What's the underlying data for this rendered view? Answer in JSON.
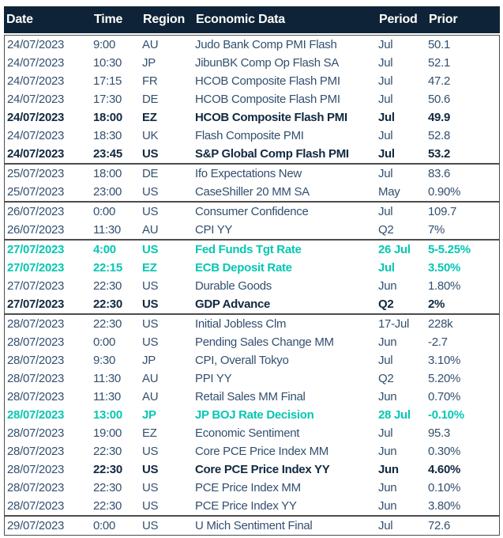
{
  "header": {
    "columns": [
      "Date",
      "Time",
      "Region",
      "Economic Data",
      "Period",
      "Prior"
    ]
  },
  "colors": {
    "header_bg": "#0E2337",
    "header_text": "#FFFFFF",
    "text_normal": "#33506F",
    "text_bold": "#112940",
    "text_highlight_teal": "#06C7B2",
    "border": "#4D4D4D",
    "background": "#FFFFFF"
  },
  "groups": [
    {
      "date": "24/07/2023",
      "rows": [
        {
          "time": "9:00",
          "region": "AU",
          "event": "Judo Bank Comp PMI Flash",
          "period": "Jul",
          "prior": "50.1",
          "style": "normal"
        },
        {
          "time": "10:30",
          "region": "JP",
          "event": "JibunBK Comp Op Flash SA",
          "period": "Jul",
          "prior": "52.1",
          "style": "normal"
        },
        {
          "time": "17:15",
          "region": "FR",
          "event": "HCOB Composite Flash PMI",
          "period": "Jul",
          "prior": "47.2",
          "style": "normal"
        },
        {
          "time": "17:30",
          "region": "DE",
          "event": "HCOB Composite Flash PMI",
          "period": "Jul",
          "prior": "50.6",
          "style": "normal"
        },
        {
          "time": "18:00",
          "region": "EZ",
          "event": "HCOB Composite Flash PMI",
          "period": "Jul",
          "prior": "49.9",
          "style": "bold"
        },
        {
          "time": "18:30",
          "region": "UK",
          "event": "Flash Composite PMI",
          "period": "Jul",
          "prior": "52.8",
          "style": "normal"
        },
        {
          "time": "23:45",
          "region": "US",
          "event": "S&P Global Comp Flash PMI",
          "period": "Jul",
          "prior": "53.2",
          "style": "bold"
        }
      ]
    },
    {
      "date": "25/07/2023",
      "rows": [
        {
          "time": "18:00",
          "region": "DE",
          "event": "Ifo Expectations New",
          "period": "Jul",
          "prior": "83.6",
          "style": "normal"
        },
        {
          "time": "23:00",
          "region": "US",
          "event": "CaseShiller 20 MM SA",
          "period": "May",
          "prior": "0.90%",
          "style": "normal"
        }
      ]
    },
    {
      "date": "26/07/2023",
      "rows": [
        {
          "time": "0:00",
          "region": "US",
          "event": "Consumer Confidence",
          "period": "Jul",
          "prior": "109.7",
          "style": "normal"
        },
        {
          "time": "11:30",
          "region": "AU",
          "event": "CPI YY",
          "period": "Q2",
          "prior": "7%",
          "style": "normal"
        }
      ]
    },
    {
      "date": "27/07/2023",
      "rows": [
        {
          "time": "4:00",
          "region": "US",
          "event": "Fed Funds Tgt Rate",
          "period": "26 Jul",
          "prior": "5-5.25%",
          "style": "teal"
        },
        {
          "time": "22:15",
          "region": "EZ",
          "event": "ECB Deposit Rate",
          "period": "Jul",
          "prior": "3.50%",
          "style": "teal"
        },
        {
          "time": "22:30",
          "region": "US",
          "event": "Durable Goods",
          "period": "Jun",
          "prior": "1.80%",
          "style": "normal"
        },
        {
          "time": "22:30",
          "region": "US",
          "event": "GDP Advance",
          "period": "Q2",
          "prior": "2%",
          "style": "bold"
        }
      ]
    },
    {
      "date": "28/07/2023",
      "rows": [
        {
          "time": "22:30",
          "region": "US",
          "event": "Initial Jobless Clm",
          "period": "17-Jul",
          "prior": "228k",
          "style": "normal"
        },
        {
          "time": "0:00",
          "region": "US",
          "event": "Pending Sales Change MM",
          "period": "Jun",
          "prior": "-2.7",
          "style": "normal"
        },
        {
          "time": "9:30",
          "region": "JP",
          "event": "CPI, Overall Tokyo",
          "period": "Jul",
          "prior": "3.10%",
          "style": "normal"
        },
        {
          "time": "11:30",
          "region": "AU",
          "event": "PPI YY",
          "period": "Q2",
          "prior": "5.20%",
          "style": "normal"
        },
        {
          "time": "11:30",
          "region": "AU",
          "event": "Retail Sales MM Final",
          "period": "Jun",
          "prior": "0.70%",
          "style": "normal"
        },
        {
          "time": "13:00",
          "region": "JP",
          "event": "JP BOJ Rate Decision",
          "period": "28 Jul",
          "prior": "-0.10%",
          "style": "teal"
        },
        {
          "time": "19:00",
          "region": "EZ",
          "event": "Economic Sentiment",
          "period": "Jul",
          "prior": "95.3",
          "style": "normal"
        },
        {
          "time": "22:30",
          "region": "US",
          "event": "Core PCE Price Index MM",
          "period": "Jun",
          "prior": "0.30%",
          "style": "normal"
        },
        {
          "time": "22:30",
          "region": "US",
          "event": "Core PCE Price Index YY",
          "period": "Jun",
          "prior": "4.60%",
          "style": "bold_except_date"
        },
        {
          "time": "22:30",
          "region": "US",
          "event": "PCE Price Index MM",
          "period": "Jun",
          "prior": "0.10%",
          "style": "normal"
        },
        {
          "time": "22:30",
          "region": "US",
          "event": "PCE Price Index YY",
          "period": "Jun",
          "prior": "3.80%",
          "style": "normal"
        }
      ]
    },
    {
      "date": "29/07/2023",
      "rows": [
        {
          "time": "0:00",
          "region": "US",
          "event": "U Mich Sentiment Final",
          "period": "Jul",
          "prior": "72.6",
          "style": "normal"
        }
      ]
    }
  ]
}
